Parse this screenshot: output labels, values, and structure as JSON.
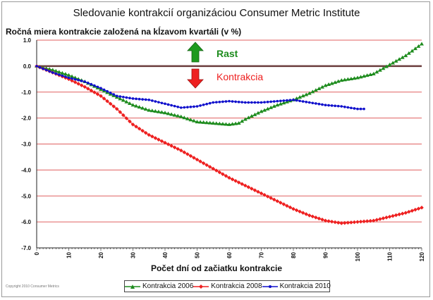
{
  "chart_data": {
    "type": "line",
    "title": "Sledovanie kontrakcií organizáciou Consumer Metric Institute",
    "subtitle": "Ročná miera kontrakcie založená na  kĺzavom  kvartáli (v %)",
    "xlabel": "Počet dní od začiatku kontrakcie",
    "ylabel": "",
    "xlim": [
      0,
      120
    ],
    "ylim": [
      -7.0,
      1.0
    ],
    "x_ticks": [
      "0",
      "10",
      "20",
      "30",
      "40",
      "50",
      "60",
      "70",
      "80",
      "90",
      "100",
      "110",
      "120"
    ],
    "y_ticks": [
      "1.0",
      "0.0",
      "-1.0",
      "-2.0",
      "-3.0",
      "-4.0",
      "-5.0",
      "-6.0",
      "-7.0"
    ],
    "grid": "horizontal",
    "legend_position": "bottom",
    "annotations": {
      "up": "Rast",
      "down": "Kontrakcia"
    },
    "copyright": "Copyright 2010 Consumer Metrics",
    "series": [
      {
        "name": "Kontrakcia 2006",
        "color": "#1e8c1e",
        "marker": "triangle",
        "points": [
          [
            0,
            0
          ],
          [
            5,
            -0.15
          ],
          [
            10,
            -0.35
          ],
          [
            15,
            -0.6
          ],
          [
            20,
            -0.9
          ],
          [
            25,
            -1.2
          ],
          [
            30,
            -1.5
          ],
          [
            35,
            -1.7
          ],
          [
            40,
            -1.8
          ],
          [
            45,
            -1.95
          ],
          [
            50,
            -2.15
          ],
          [
            55,
            -2.2
          ],
          [
            60,
            -2.25
          ],
          [
            63,
            -2.2
          ],
          [
            65,
            -2.05
          ],
          [
            70,
            -1.75
          ],
          [
            75,
            -1.5
          ],
          [
            80,
            -1.3
          ],
          [
            85,
            -1.05
          ],
          [
            90,
            -0.75
          ],
          [
            95,
            -0.55
          ],
          [
            100,
            -0.45
          ],
          [
            105,
            -0.3
          ],
          [
            110,
            0.05
          ],
          [
            115,
            0.4
          ],
          [
            120,
            0.85
          ]
        ]
      },
      {
        "name": "Kontrakcia 2008",
        "color": "#ee2020",
        "marker": "diamond",
        "points": [
          [
            0,
            0
          ],
          [
            5,
            -0.25
          ],
          [
            10,
            -0.5
          ],
          [
            15,
            -0.8
          ],
          [
            20,
            -1.15
          ],
          [
            25,
            -1.65
          ],
          [
            30,
            -2.25
          ],
          [
            35,
            -2.65
          ],
          [
            40,
            -2.95
          ],
          [
            45,
            -3.25
          ],
          [
            50,
            -3.6
          ],
          [
            55,
            -3.95
          ],
          [
            60,
            -4.3
          ],
          [
            65,
            -4.6
          ],
          [
            70,
            -4.9
          ],
          [
            75,
            -5.2
          ],
          [
            80,
            -5.5
          ],
          [
            85,
            -5.75
          ],
          [
            90,
            -5.95
          ],
          [
            95,
            -6.05
          ],
          [
            100,
            -6.0
          ],
          [
            105,
            -5.95
          ],
          [
            110,
            -5.8
          ],
          [
            115,
            -5.65
          ],
          [
            120,
            -5.45
          ]
        ]
      },
      {
        "name": "Kontrakcia 2010",
        "color": "#1010cc",
        "marker": "circle",
        "points": [
          [
            0,
            0
          ],
          [
            5,
            -0.25
          ],
          [
            10,
            -0.45
          ],
          [
            15,
            -0.6
          ],
          [
            20,
            -0.85
          ],
          [
            25,
            -1.15
          ],
          [
            30,
            -1.25
          ],
          [
            35,
            -1.3
          ],
          [
            40,
            -1.45
          ],
          [
            45,
            -1.6
          ],
          [
            50,
            -1.55
          ],
          [
            55,
            -1.4
          ],
          [
            60,
            -1.35
          ],
          [
            65,
            -1.4
          ],
          [
            70,
            -1.4
          ],
          [
            75,
            -1.35
          ],
          [
            80,
            -1.3
          ],
          [
            85,
            -1.4
          ],
          [
            90,
            -1.5
          ],
          [
            95,
            -1.55
          ],
          [
            100,
            -1.65
          ],
          [
            102,
            -1.65
          ]
        ]
      }
    ]
  }
}
